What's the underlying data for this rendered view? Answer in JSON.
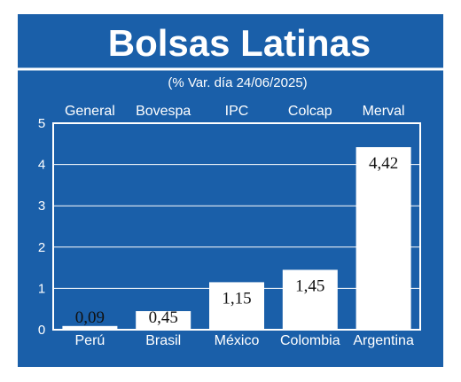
{
  "colors": {
    "background": "#1a5fa9",
    "bar": "#ffffff",
    "frame": "#ffffff",
    "gridline": "#ffffff"
  },
  "chart_data": {
    "type": "bar",
    "title": "Bolsas Latinas",
    "subtitle": "(% Var. día 24/06/2025)",
    "categories": [
      "Perú",
      "Brasil",
      "México",
      "Colombia",
      "Argentina"
    ],
    "index_names": [
      "General",
      "Bovespa",
      "IPC",
      "Colcap",
      "Merval"
    ],
    "values": [
      0.09,
      0.45,
      1.15,
      1.45,
      4.42
    ],
    "value_labels": [
      "0,09",
      "0,45",
      "1,15",
      "1,45",
      "4,42"
    ],
    "yticks": [
      "0",
      "1",
      "2",
      "3",
      "4",
      "5"
    ],
    "ylim": [
      0,
      5
    ],
    "grid": true,
    "xlabel": "",
    "ylabel": ""
  }
}
